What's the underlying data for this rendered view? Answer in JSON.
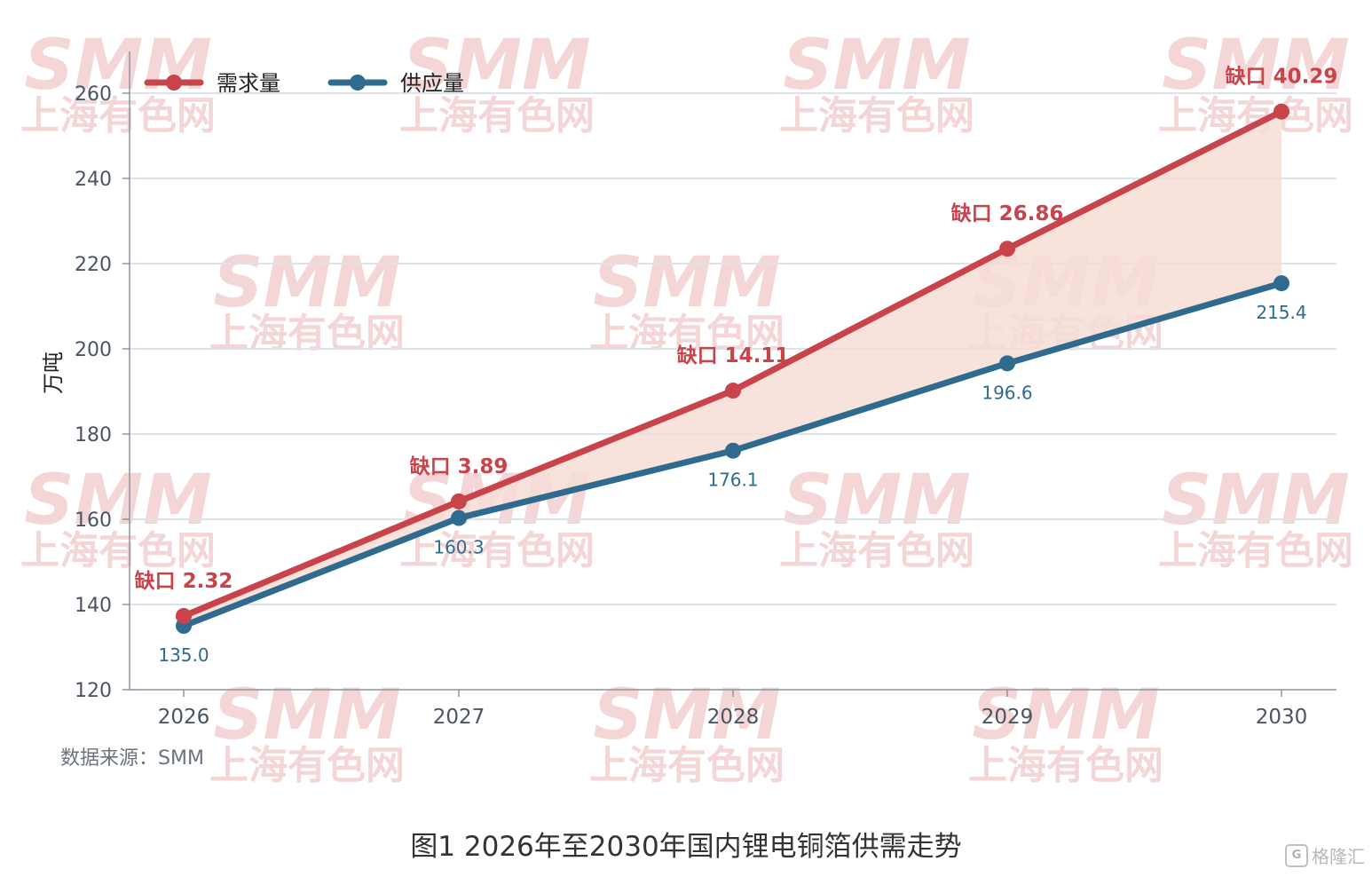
{
  "chart_data": {
    "type": "line",
    "categories": [
      "2026",
      "2027",
      "2028",
      "2029",
      "2030"
    ],
    "series": [
      {
        "name": "需求量",
        "color": "#c9434a",
        "values": [
          137.3,
          164.2,
          190.2,
          223.5,
          255.7
        ]
      },
      {
        "name": "供应量",
        "color": "#2e6b8f",
        "values": [
          135.0,
          160.3,
          176.1,
          196.6,
          215.4
        ]
      }
    ],
    "supply_labels": [
      "135.0",
      "160.3",
      "176.1",
      "196.6",
      "215.4"
    ],
    "gap_labels": [
      "缺口 2.32",
      "缺口 3.89",
      "缺口 14.11",
      "缺口 26.86",
      "缺口 40.29"
    ],
    "gap_fill_color": "#f6ddd6",
    "ylabel": "万吨",
    "ylim": [
      120,
      265
    ],
    "yticks": [
      120,
      140,
      160,
      180,
      200,
      220,
      240,
      260
    ],
    "grid": true,
    "legend_position": "top-left"
  },
  "watermark": {
    "logo_text": "SMM",
    "cn_text": "上海有色网",
    "color": "#f1c9c9"
  },
  "source_text": "数据来源：SMM",
  "caption": "图1 2026年至2030年国内锂电铜箔供需走势",
  "brand": {
    "icon": "gelonghui-logo-icon",
    "text": "格隆汇"
  }
}
